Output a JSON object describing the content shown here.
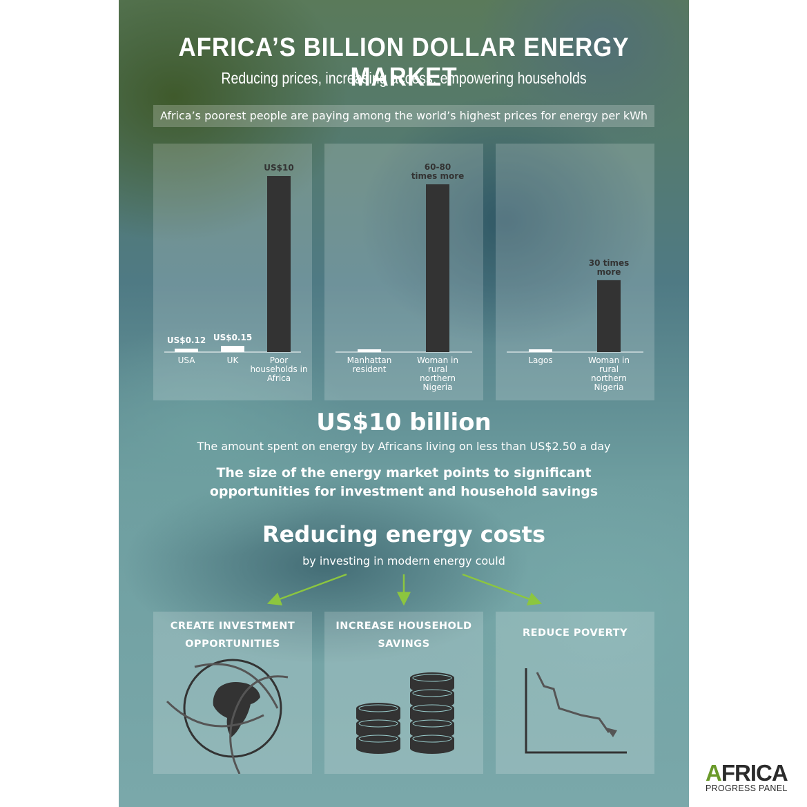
{
  "title": "AFRICA’S  BILLION DOLLAR ENERGY MARKET",
  "subtitle": "Reducing prices, increasing access, empowering households",
  "banner": "Africa’s poorest people are paying among the world’s highest prices for energy per kWh",
  "chart_data": [
    {
      "type": "bar",
      "categories": [
        "USA",
        "UK",
        "Poor households in Africa"
      ],
      "values": [
        0.12,
        0.15,
        10
      ],
      "data_labels": [
        "US$0.12",
        "US$0.15",
        "US$10"
      ],
      "ylim": [
        0,
        10
      ]
    },
    {
      "type": "bar",
      "categories": [
        "Manhattan resident",
        "Woman in rural northern Nigeria"
      ],
      "values": [
        1,
        70
      ],
      "data_labels": [
        "",
        "60-80 times more"
      ]
    },
    {
      "type": "bar",
      "categories": [
        "Lagos",
        "Woman in rural northern Nigeria"
      ],
      "values": [
        1,
        30
      ],
      "data_labels": [
        "",
        "30 times more"
      ]
    }
  ],
  "stat": {
    "value": "US$10 billion",
    "description": "The amount spent on energy by Africans living on less than US$2.50 a day",
    "emphasis": "The size of the energy market points to significant opportunities for investment and household savings"
  },
  "reduce": {
    "title": "Reducing energy costs",
    "subtitle": "by investing in modern energy could"
  },
  "outcomes": [
    {
      "label": "CREATE INVESTMENT OPPORTUNITIES",
      "icon": "globe-icon"
    },
    {
      "label": "INCREASE HOUSEHOLD SAVINGS",
      "icon": "coin-stack-icon"
    },
    {
      "label": "REDUCE POVERTY",
      "icon": "declining-chart-icon"
    }
  ],
  "colors": {
    "bar": "#333333",
    "arrow": "#8cc63f",
    "text": "#ffffff"
  },
  "logo": {
    "main": "AFRICA",
    "sub": "PROGRESS PANEL"
  }
}
